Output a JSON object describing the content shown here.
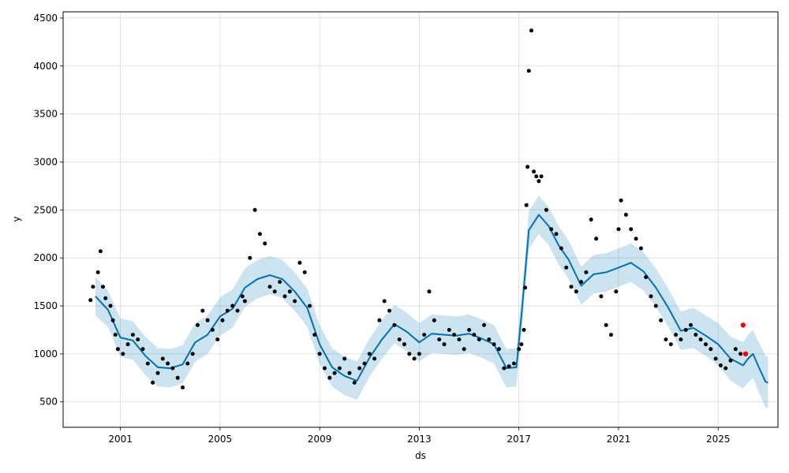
{
  "chart_data": {
    "type": "scatter",
    "xlabel": "ds",
    "ylabel": "y",
    "xlim": [
      1998.7,
      2027.4
    ],
    "ylim": [
      235,
      4565
    ],
    "grid": true,
    "x_ticks": [
      {
        "value": 2001,
        "label": "2001"
      },
      {
        "value": 2005,
        "label": "2005"
      },
      {
        "value": 2009,
        "label": "2009"
      },
      {
        "value": 2013,
        "label": "2013"
      },
      {
        "value": 2017,
        "label": "2017"
      },
      {
        "value": 2021,
        "label": "2021"
      },
      {
        "value": 2025,
        "label": "2025"
      }
    ],
    "y_ticks": [
      {
        "value": 500,
        "label": "500"
      },
      {
        "value": 1000,
        "label": "1000"
      },
      {
        "value": 1500,
        "label": "1500"
      },
      {
        "value": 2000,
        "label": "2000"
      },
      {
        "value": 2500,
        "label": "2500"
      },
      {
        "value": 3000,
        "label": "3000"
      },
      {
        "value": 3500,
        "label": "3500"
      },
      {
        "value": 4000,
        "label": "4000"
      },
      {
        "value": 4500,
        "label": "4500"
      }
    ],
    "colors": {
      "observed": "#000000",
      "forecast_line": "#0072B2",
      "interval_fill": "#0072B2",
      "highlight": "#ff0000"
    },
    "series": [
      {
        "kind": "forecast",
        "x": [
          2000.0,
          2000.5,
          2001.0,
          2001.5,
          2002.0,
          2002.5,
          2003.0,
          2003.5,
          2004.0,
          2004.5,
          2005.0,
          2005.5,
          2006.0,
          2006.5,
          2007.0,
          2007.5,
          2008.0,
          2008.5,
          2009.0,
          2009.5,
          2010.0,
          2010.5,
          2011.0,
          2011.5,
          2012.0,
          2012.5,
          2013.0,
          2013.5,
          2014.0,
          2014.5,
          2015.0,
          2015.5,
          2016.0,
          2016.5,
          2016.9,
          2017.1,
          2017.4,
          2017.8,
          2018.2,
          2018.6,
          2019.0,
          2019.5,
          2020.0,
          2020.5,
          2021.0,
          2021.5,
          2022.0,
          2022.5,
          2023.0,
          2023.5,
          2024.0,
          2024.5,
          2025.0,
          2025.5,
          2026.0,
          2026.2,
          2026.4,
          2026.6,
          2026.9,
          2027.0
        ],
        "y": [
          1600,
          1460,
          1170,
          1140,
          980,
          860,
          850,
          890,
          1120,
          1200,
          1390,
          1470,
          1690,
          1780,
          1820,
          1780,
          1650,
          1480,
          1100,
          860,
          770,
          720,
          960,
          1150,
          1310,
          1230,
          1120,
          1210,
          1200,
          1190,
          1210,
          1160,
          1100,
          850,
          860,
          1400,
          2290,
          2450,
          2330,
          2130,
          1980,
          1710,
          1830,
          1850,
          1900,
          1950,
          1860,
          1690,
          1480,
          1240,
          1270,
          1190,
          1100,
          950,
          880,
          950,
          1000,
          880,
          710,
          700
        ],
        "lower": [
          1400,
          1280,
          970,
          940,
          780,
          660,
          650,
          690,
          920,
          1000,
          1190,
          1270,
          1490,
          1580,
          1620,
          1580,
          1450,
          1280,
          900,
          660,
          570,
          520,
          760,
          950,
          1110,
          1030,
          920,
          1010,
          1000,
          990,
          1010,
          960,
          900,
          650,
          660,
          1200,
          2090,
          2250,
          2130,
          1930,
          1780,
          1510,
          1630,
          1650,
          1700,
          1750,
          1660,
          1490,
          1280,
          1040,
          1060,
          980,
          880,
          720,
          640,
          700,
          750,
          620,
          440,
          430
        ],
        "upper": [
          1800,
          1660,
          1370,
          1340,
          1180,
          1060,
          1050,
          1090,
          1320,
          1400,
          1590,
          1670,
          1890,
          1980,
          2020,
          1980,
          1850,
          1680,
          1300,
          1060,
          970,
          920,
          1160,
          1350,
          1510,
          1430,
          1320,
          1410,
          1400,
          1390,
          1410,
          1360,
          1300,
          1050,
          1060,
          1600,
          2490,
          2650,
          2530,
          2330,
          2180,
          1910,
          2030,
          2050,
          2100,
          2150,
          2060,
          1890,
          1680,
          1440,
          1480,
          1400,
          1320,
          1180,
          1120,
          1200,
          1250,
          1140,
          980,
          970
        ]
      },
      {
        "kind": "observed",
        "x": [
          1999.8,
          1999.9,
          2000.1,
          2000.2,
          2000.3,
          2000.4,
          2000.6,
          2000.7,
          2000.8,
          2000.9,
          2001.1,
          2001.3,
          2001.5,
          2001.7,
          2001.9,
          2002.1,
          2002.3,
          2002.5,
          2002.7,
          2002.9,
          2003.1,
          2003.3,
          2003.5,
          2003.7,
          2003.9,
          2004.1,
          2004.3,
          2004.5,
          2004.7,
          2004.9,
          2005.1,
          2005.3,
          2005.5,
          2005.7,
          2005.9,
          2006.0,
          2006.2,
          2006.4,
          2006.6,
          2006.8,
          2007.0,
          2007.2,
          2007.4,
          2007.6,
          2007.8,
          2008.0,
          2008.2,
          2008.4,
          2008.6,
          2008.8,
          2009.0,
          2009.2,
          2009.4,
          2009.6,
          2009.8,
          2010.0,
          2010.2,
          2010.4,
          2010.6,
          2010.8,
          2011.0,
          2011.2,
          2011.4,
          2011.6,
          2011.8,
          2012.0,
          2012.2,
          2012.4,
          2012.6,
          2012.8,
          2013.0,
          2013.2,
          2013.4,
          2013.6,
          2013.8,
          2014.0,
          2014.2,
          2014.4,
          2014.6,
          2014.8,
          2015.0,
          2015.2,
          2015.4,
          2015.6,
          2015.8,
          2016.0,
          2016.2,
          2016.4,
          2016.6,
          2016.8,
          2017.0,
          2017.1,
          2017.2,
          2017.25,
          2017.3,
          2017.35,
          2017.4,
          2017.5,
          2017.6,
          2017.7,
          2017.8,
          2017.9,
          2018.1,
          2018.3,
          2018.5,
          2018.7,
          2018.9,
          2019.1,
          2019.3,
          2019.5,
          2019.7,
          2019.9,
          2020.1,
          2020.3,
          2020.5,
          2020.7,
          2020.9,
          2021.0,
          2021.1,
          2021.3,
          2021.5,
          2021.7,
          2021.9,
          2022.1,
          2022.3,
          2022.5,
          2022.7,
          2022.9,
          2023.1,
          2023.3,
          2023.5,
          2023.7,
          2023.9,
          2024.1,
          2024.3,
          2024.5,
          2024.7,
          2024.9,
          2025.1,
          2025.3,
          2025.5,
          2025.7,
          2025.9
        ],
        "y": [
          1560,
          1700,
          1850,
          2070,
          1700,
          1580,
          1500,
          1350,
          1200,
          1050,
          1000,
          1100,
          1200,
          1150,
          1050,
          900,
          700,
          800,
          950,
          900,
          850,
          750,
          650,
          900,
          1000,
          1300,
          1450,
          1350,
          1250,
          1150,
          1350,
          1450,
          1500,
          1450,
          1600,
          1550,
          2000,
          2500,
          2250,
          2150,
          1700,
          1650,
          1750,
          1600,
          1650,
          1550,
          1950,
          1850,
          1500,
          1200,
          1000,
          850,
          750,
          800,
          850,
          950,
          800,
          700,
          850,
          900,
          1000,
          950,
          1350,
          1550,
          1450,
          1300,
          1150,
          1100,
          1000,
          950,
          1000,
          1200,
          1650,
          1350,
          1150,
          1100,
          1250,
          1200,
          1150,
          1050,
          1250,
          1200,
          1150,
          1300,
          1150,
          1100,
          1050,
          850,
          870,
          900,
          1050,
          1100,
          1250,
          1690,
          2550,
          2950,
          3950,
          4370,
          2900,
          2850,
          2800,
          2850,
          2500,
          2300,
          2250,
          2100,
          1900,
          1700,
          1650,
          1750,
          1850,
          2400,
          2200,
          1600,
          1300,
          1200,
          1650,
          2300,
          2600,
          2450,
          2300,
          2200,
          2100,
          1800,
          1600,
          1500,
          1350,
          1150,
          1100,
          1200,
          1150,
          1250,
          1300,
          1200,
          1150,
          1100,
          1050,
          950,
          880,
          850,
          930,
          1050,
          1000
        ]
      },
      {
        "kind": "highlight",
        "x": [
          2026.0,
          2026.1
        ],
        "y": [
          1300,
          1000
        ]
      }
    ]
  }
}
